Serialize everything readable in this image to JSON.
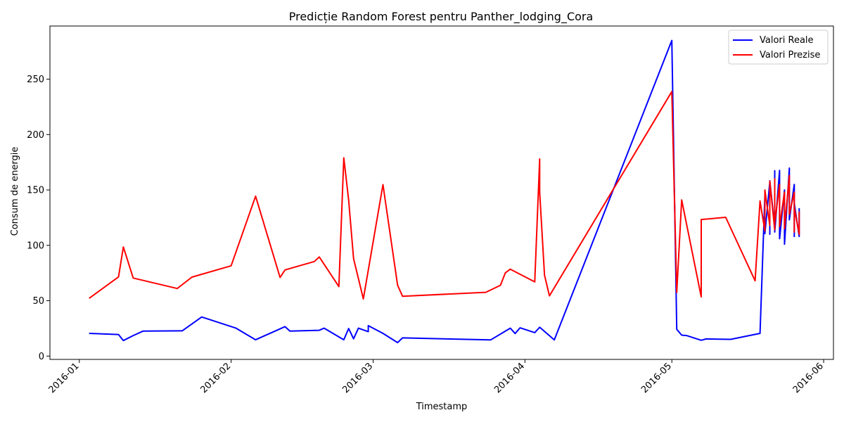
{
  "chart_data": {
    "type": "line",
    "title": "Predicție Random Forest pentru Panther_lodging_Cora",
    "xlabel": "Timestamp",
    "ylabel": "Consum de energie",
    "x_ticks": [
      "2016-01",
      "2016-02",
      "2016-03",
      "2016-04",
      "2016-05",
      "2016-06"
    ],
    "y_ticks": [
      "0",
      "50",
      "100",
      "150",
      "200",
      "250"
    ],
    "xlim": [
      "2015-12-26",
      "2016-06-03"
    ],
    "ylim": [
      -3,
      298
    ],
    "grid": false,
    "legend_position": "top-right",
    "series": [
      {
        "name": "Valori Reale",
        "color": "#0000ff",
        "points": [
          [
            "2016-01-03",
            20.5
          ],
          [
            "2016-01-09",
            19.5
          ],
          [
            "2016-01-10",
            14
          ],
          [
            "2016-01-12",
            18.5
          ],
          [
            "2016-01-14",
            22.5
          ],
          [
            "2016-01-22",
            22.8
          ],
          [
            "2016-01-26",
            35.3
          ],
          [
            "2016-02-02",
            25.2
          ],
          [
            "2016-02-06",
            14.7
          ],
          [
            "2016-02-12",
            26.6
          ],
          [
            "2016-02-13",
            22.5
          ],
          [
            "2016-02-19",
            23.3
          ],
          [
            "2016-02-20",
            25.2
          ],
          [
            "2016-02-24",
            14.7
          ],
          [
            "2016-02-25",
            24.9
          ],
          [
            "2016-02-26",
            15.6
          ],
          [
            "2016-02-27",
            25.2
          ],
          [
            "2016-02-29",
            22
          ],
          [
            "2016-02-29",
            27.5
          ],
          [
            "2016-03-03",
            20.5
          ],
          [
            "2016-03-06",
            12.2
          ],
          [
            "2016-03-07",
            16.4
          ],
          [
            "2016-03-25",
            14.6
          ],
          [
            "2016-03-29",
            25.2
          ],
          [
            "2016-03-30",
            20.4
          ],
          [
            "2016-03-31",
            25.5
          ],
          [
            "2016-04-03",
            21.2
          ],
          [
            "2016-04-04",
            26
          ],
          [
            "2016-04-07",
            14.6
          ],
          [
            "2016-05-01",
            285
          ],
          [
            "2016-05-02",
            24.2
          ],
          [
            "2016-05-03",
            18.9
          ],
          [
            "2016-05-04",
            18.5
          ],
          [
            "2016-05-07",
            14.3
          ],
          [
            "2016-05-08",
            15.5
          ],
          [
            "2016-05-13",
            15.1
          ],
          [
            "2016-05-19",
            20.5
          ],
          [
            "2016-05-20",
            145
          ],
          [
            "2016-05-20",
            110.5
          ],
          [
            "2016-05-21",
            157
          ],
          [
            "2016-05-21",
            110
          ],
          [
            "2016-05-21",
            158.3
          ],
          [
            "2016-05-22",
            117
          ],
          [
            "2016-05-22",
            167.3
          ],
          [
            "2016-05-22",
            112
          ],
          [
            "2016-05-23",
            167.7
          ],
          [
            "2016-05-23",
            106
          ],
          [
            "2016-05-24",
            150
          ],
          [
            "2016-05-24",
            101
          ],
          [
            "2016-05-25",
            169.7
          ],
          [
            "2016-05-25",
            123
          ],
          [
            "2016-05-26",
            155
          ],
          [
            "2016-05-26",
            108
          ],
          [
            "2016-05-26",
            138
          ],
          [
            "2016-05-27",
            108
          ],
          [
            "2016-05-27",
            133
          ],
          [
            "2016-05-27",
            120
          ]
        ]
      },
      {
        "name": "Valori Prezise",
        "color": "#ff0000",
        "points": [
          [
            "2016-01-03",
            52.1
          ],
          [
            "2016-01-09",
            71.5
          ],
          [
            "2016-01-10",
            98.5
          ],
          [
            "2016-01-12",
            70.5
          ],
          [
            "2016-01-21",
            61
          ],
          [
            "2016-01-24",
            71.3
          ],
          [
            "2016-02-01",
            81.5
          ],
          [
            "2016-02-06",
            144.4
          ],
          [
            "2016-02-11",
            71
          ],
          [
            "2016-02-12",
            77.8
          ],
          [
            "2016-02-18",
            85.4
          ],
          [
            "2016-02-19",
            89.5
          ],
          [
            "2016-02-23",
            62.8
          ],
          [
            "2016-02-24",
            179
          ],
          [
            "2016-02-25",
            141
          ],
          [
            "2016-02-26",
            88
          ],
          [
            "2016-02-28",
            51.6
          ],
          [
            "2016-03-03",
            154.8
          ],
          [
            "2016-03-06",
            64
          ],
          [
            "2016-03-07",
            54
          ],
          [
            "2016-03-24",
            57.6
          ],
          [
            "2016-03-27",
            63.9
          ],
          [
            "2016-03-28",
            75.2
          ],
          [
            "2016-03-29",
            78.5
          ],
          [
            "2016-04-03",
            67
          ],
          [
            "2016-04-04",
            178
          ],
          [
            "2016-04-04",
            148
          ],
          [
            "2016-04-05",
            73
          ],
          [
            "2016-04-06",
            54.4
          ],
          [
            "2016-05-01",
            238.8
          ],
          [
            "2016-05-02",
            57.5
          ],
          [
            "2016-05-03",
            141
          ],
          [
            "2016-05-07",
            53.5
          ],
          [
            "2016-05-07",
            123.3
          ],
          [
            "2016-05-12",
            125.3
          ],
          [
            "2016-05-18",
            68
          ],
          [
            "2016-05-19",
            140
          ],
          [
            "2016-05-20",
            113
          ],
          [
            "2016-05-20",
            150
          ],
          [
            "2016-05-21",
            118
          ],
          [
            "2016-05-21",
            158
          ],
          [
            "2016-05-22",
            114
          ],
          [
            "2016-05-22",
            160
          ],
          [
            "2016-05-22",
            120
          ],
          [
            "2016-05-23",
            155
          ],
          [
            "2016-05-23",
            117
          ],
          [
            "2016-05-24",
            148
          ],
          [
            "2016-05-24",
            115
          ],
          [
            "2016-05-25",
            163
          ],
          [
            "2016-05-25",
            128
          ],
          [
            "2016-05-26",
            148
          ],
          [
            "2016-05-26",
            112
          ],
          [
            "2016-05-26",
            134
          ],
          [
            "2016-05-27",
            110
          ],
          [
            "2016-05-27",
            130
          ],
          [
            "2016-05-27",
            122
          ]
        ]
      }
    ]
  }
}
